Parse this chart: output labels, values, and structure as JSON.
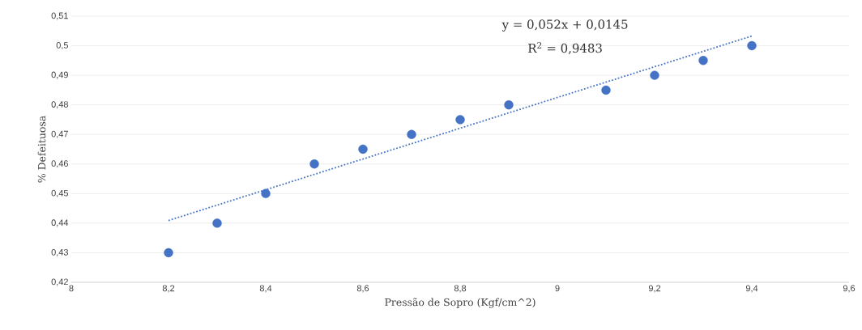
{
  "chart_data": {
    "type": "scatter",
    "xlabel": "Pressão de Sopro (Kgf/cm^2)",
    "ylabel": "% Defeituosa",
    "xlim": [
      8,
      9.6
    ],
    "ylim": [
      0.42,
      0.51
    ],
    "xticks": [
      8,
      {
        "value": 8.2,
        "label": "8,2"
      },
      {
        "value": 8.4,
        "label": "8,4"
      },
      {
        "value": 8.6,
        "label": "8,6"
      },
      {
        "value": 8.8,
        "label": "8,8"
      },
      9,
      {
        "value": 9.2,
        "label": "9,2"
      },
      {
        "value": 9.4,
        "label": "9,4"
      },
      {
        "value": 9.6,
        "label": "9,6"
      }
    ],
    "yticks": [
      {
        "value": 0.42,
        "label": "0,42"
      },
      {
        "value": 0.43,
        "label": "0,43"
      },
      {
        "value": 0.44,
        "label": "0,44"
      },
      {
        "value": 0.45,
        "label": "0,45"
      },
      {
        "value": 0.46,
        "label": "0,46"
      },
      {
        "value": 0.47,
        "label": "0,47"
      },
      {
        "value": 0.48,
        "label": "0,48"
      },
      {
        "value": 0.49,
        "label": "0,49"
      },
      {
        "value": 0.5,
        "label": "0,5"
      },
      {
        "value": 0.51,
        "label": "0,51"
      }
    ],
    "grid": "y",
    "marker": "circle",
    "x": [
      8.2,
      8.3,
      8.4,
      8.5,
      8.6,
      8.7,
      8.8,
      8.9,
      9.1,
      9.2,
      9.3,
      9.4
    ],
    "series": [
      {
        "color": "#4472c4",
        "values": [
          0.43,
          0.44,
          0.45,
          0.46,
          0.465,
          0.47,
          0.475,
          0.48,
          0.485,
          0.49,
          0.495,
          0.5
        ]
      },
      {
        "type": "line",
        "color": "#4472c4",
        "marker": "none",
        "line_style": "dotted",
        "x": [
          8.2,
          9.4
        ],
        "values": [
          0.4409,
          0.5033
        ]
      }
    ],
    "annotations": [
      "y = 0,052x + 0,0145",
      "R$^{2}$ = 0,9483"
    ]
  }
}
